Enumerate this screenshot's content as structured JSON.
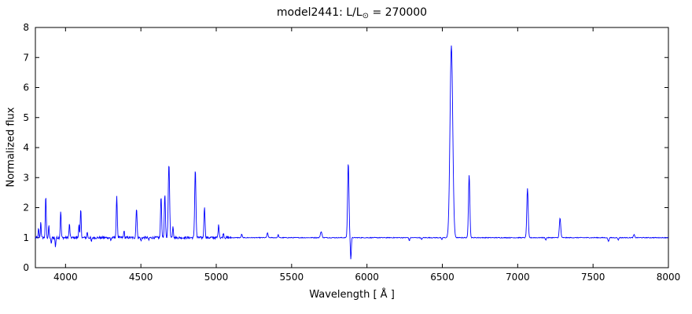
{
  "figure": {
    "title_prefix": "model2441: L/L",
    "title_sub": "⊙",
    "title_suffix": " = 270000",
    "xlabel": "Wavelength [ Å ]",
    "ylabel": "Normalized flux"
  },
  "chart_data": {
    "type": "line",
    "title": "model2441: L/L⊙ = 270000",
    "xlabel": "Wavelength [ Å ]",
    "ylabel": "Normalized flux",
    "xlim": [
      3800,
      8000
    ],
    "ylim": [
      0,
      8
    ],
    "xticks": [
      4000,
      4500,
      5000,
      5500,
      6000,
      6500,
      7000,
      7500,
      8000
    ],
    "yticks": [
      0,
      1,
      2,
      3,
      4,
      5,
      6,
      7,
      8
    ],
    "grid": false,
    "legend": null,
    "line_color": "#0000ff",
    "background": "#ffffff",
    "baseline": 1.0,
    "sample_step": 2.5,
    "emission_peaks": [
      {
        "center": 3821,
        "amp": 0.3,
        "sigma": 2.5
      },
      {
        "center": 3836,
        "amp": 0.55,
        "sigma": 2.5
      },
      {
        "center": 3869,
        "amp": 1.4,
        "sigma": 3.0
      },
      {
        "center": 3889,
        "amp": 0.4,
        "sigma": 2.5
      },
      {
        "center": 3968,
        "amp": 0.9,
        "sigma": 3.0
      },
      {
        "center": 4026,
        "amp": 0.45,
        "sigma": 3.0
      },
      {
        "center": 4089,
        "amp": 0.45,
        "sigma": 2.5
      },
      {
        "center": 4101,
        "amp": 0.95,
        "sigma": 3.0
      },
      {
        "center": 4144,
        "amp": 0.2,
        "sigma": 2.5
      },
      {
        "center": 4340,
        "amp": 1.35,
        "sigma": 3.5
      },
      {
        "center": 4388,
        "amp": 0.25,
        "sigma": 2.5
      },
      {
        "center": 4471,
        "amp": 1.0,
        "sigma": 3.5
      },
      {
        "center": 4634,
        "amp": 1.4,
        "sigma": 3.5
      },
      {
        "center": 4659,
        "amp": 1.45,
        "sigma": 3.5
      },
      {
        "center": 4686,
        "amp": 2.45,
        "sigma": 4.5
      },
      {
        "center": 4713,
        "amp": 0.4,
        "sigma": 3.0
      },
      {
        "center": 4861,
        "amp": 2.3,
        "sigma": 4.0
      },
      {
        "center": 4922,
        "amp": 1.05,
        "sigma": 3.5
      },
      {
        "center": 5016,
        "amp": 0.42,
        "sigma": 3.5
      },
      {
        "center": 5048,
        "amp": 0.15,
        "sigma": 3.0
      },
      {
        "center": 5169,
        "amp": 0.12,
        "sigma": 3.0
      },
      {
        "center": 5340,
        "amp": 0.15,
        "sigma": 4.0
      },
      {
        "center": 5411,
        "amp": 0.1,
        "sigma": 3.0
      },
      {
        "center": 5696,
        "amp": 0.2,
        "sigma": 5.0
      },
      {
        "center": 5876,
        "amp": 2.5,
        "sigma": 4.5
      },
      {
        "center": 6560,
        "amp": 6.4,
        "sigma": 9.0
      },
      {
        "center": 6678,
        "amp": 2.1,
        "sigma": 4.5
      },
      {
        "center": 7065,
        "amp": 1.65,
        "sigma": 4.5
      },
      {
        "center": 7281,
        "amp": 0.65,
        "sigma": 4.5
      },
      {
        "center": 7772,
        "amp": 0.1,
        "sigma": 4.0
      }
    ],
    "absorption_dips": [
      {
        "center": 3905,
        "amp": 0.22,
        "sigma": 2.5
      },
      {
        "center": 3933,
        "amp": 0.3,
        "sigma": 2.5
      },
      {
        "center": 4172,
        "amp": 0.15,
        "sigma": 2.5
      },
      {
        "center": 4300,
        "amp": 0.1,
        "sigma": 2.5
      },
      {
        "center": 4501,
        "amp": 0.12,
        "sigma": 2.5
      },
      {
        "center": 4552,
        "amp": 0.1,
        "sigma": 2.5
      },
      {
        "center": 5893,
        "amp": 0.72,
        "sigma": 3.0
      },
      {
        "center": 6281,
        "amp": 0.1,
        "sigma": 3.0
      },
      {
        "center": 6363,
        "amp": 0.07,
        "sigma": 3.0
      },
      {
        "center": 6496,
        "amp": 0.07,
        "sigma": 3.0
      },
      {
        "center": 7186,
        "amp": 0.08,
        "sigma": 3.0
      },
      {
        "center": 7602,
        "amp": 0.12,
        "sigma": 4.0
      },
      {
        "center": 7667,
        "amp": 0.08,
        "sigma": 3.0
      }
    ],
    "noise_bands": [
      {
        "from": 3800,
        "to": 5100,
        "amp": 0.04
      },
      {
        "from": 5100,
        "to": 8001,
        "amp": 0.012
      }
    ]
  }
}
